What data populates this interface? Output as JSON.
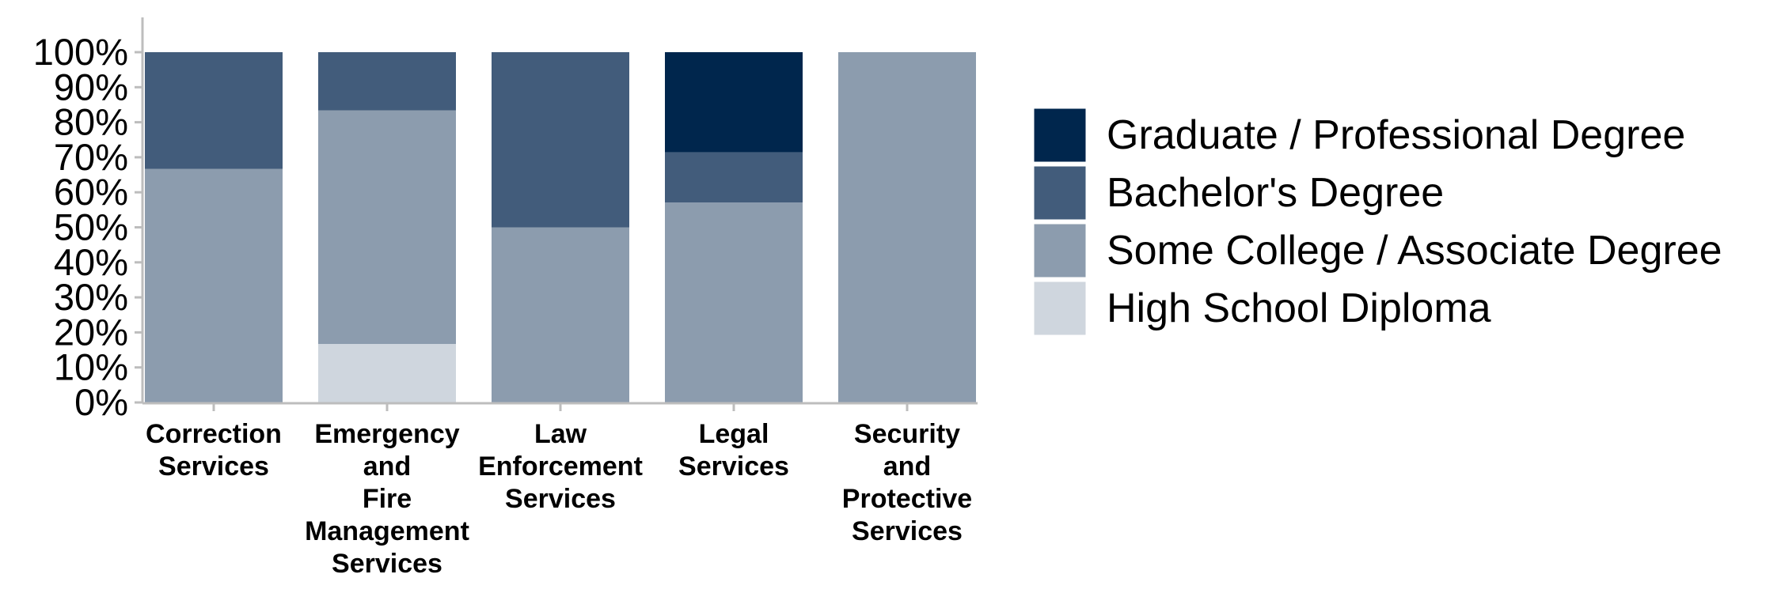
{
  "chart_data": {
    "type": "bar",
    "stacked": true,
    "normalized": true,
    "categories": [
      "Correction Services",
      "Emergency and Fire Management Services",
      "Law Enforcement Services",
      "Legal Services",
      "Security and Protective Services"
    ],
    "category_lines": [
      [
        "Correction",
        "Services"
      ],
      [
        "Emergency",
        "and",
        "Fire",
        "Management",
        "Services"
      ],
      [
        "Law",
        "Enforcement",
        "Services"
      ],
      [
        "Legal",
        "Services"
      ],
      [
        "Security",
        "and",
        "Protective",
        "Services"
      ]
    ],
    "series": [
      {
        "name": "High School Diploma",
        "color": "#cfd6de",
        "values": [
          0,
          16.7,
          0,
          0,
          0
        ]
      },
      {
        "name": "Some College / Associate Degree",
        "color": "#8c9cae",
        "values": [
          66.7,
          66.7,
          50,
          57.1,
          100
        ]
      },
      {
        "name": "Bachelor's Degree",
        "color": "#425c7b",
        "values": [
          33.3,
          16.6,
          50,
          14.3,
          0
        ]
      },
      {
        "name": "Graduate / Professional Degree",
        "color": "#00264d",
        "values": [
          0,
          0,
          0,
          28.6,
          0
        ]
      }
    ],
    "legend_order": [
      "Graduate / Professional Degree",
      "Bachelor's Degree",
      "Some College / Associate Degree",
      "High School Diploma"
    ],
    "ylim": [
      0,
      100
    ],
    "yticks": [
      "0%",
      "10%",
      "20%",
      "30%",
      "40%",
      "50%",
      "60%",
      "70%",
      "80%",
      "90%",
      "100%"
    ],
    "title": "",
    "xlabel": "",
    "ylabel": "",
    "grid": false,
    "legend_position": "right",
    "axis_color": "#bdbdbd"
  }
}
